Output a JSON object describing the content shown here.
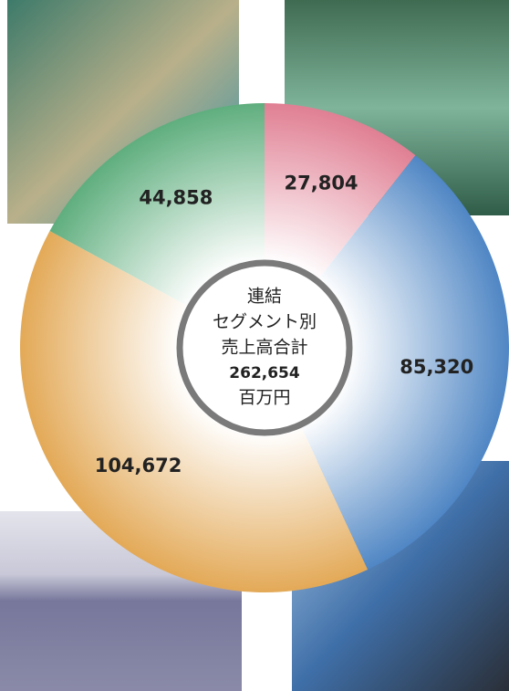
{
  "chart_data": {
    "type": "donut",
    "categories": [
      null,
      null,
      null,
      null
    ],
    "series": [
      {
        "name": null,
        "colors": [
          "#e07f93",
          "#4f86c4",
          "#e3a957",
          "#5fae7e"
        ],
        "values": [
          27804,
          85320,
          104672,
          44858
        ],
        "value_labels": [
          "27,804",
          "85,320",
          "104,672",
          "44,858"
        ]
      }
    ],
    "center_text": [
      "連結",
      "セグメント別",
      "売上高合計"
    ],
    "total": 262654,
    "total_label": "262,654",
    "unit": "百万円"
  }
}
